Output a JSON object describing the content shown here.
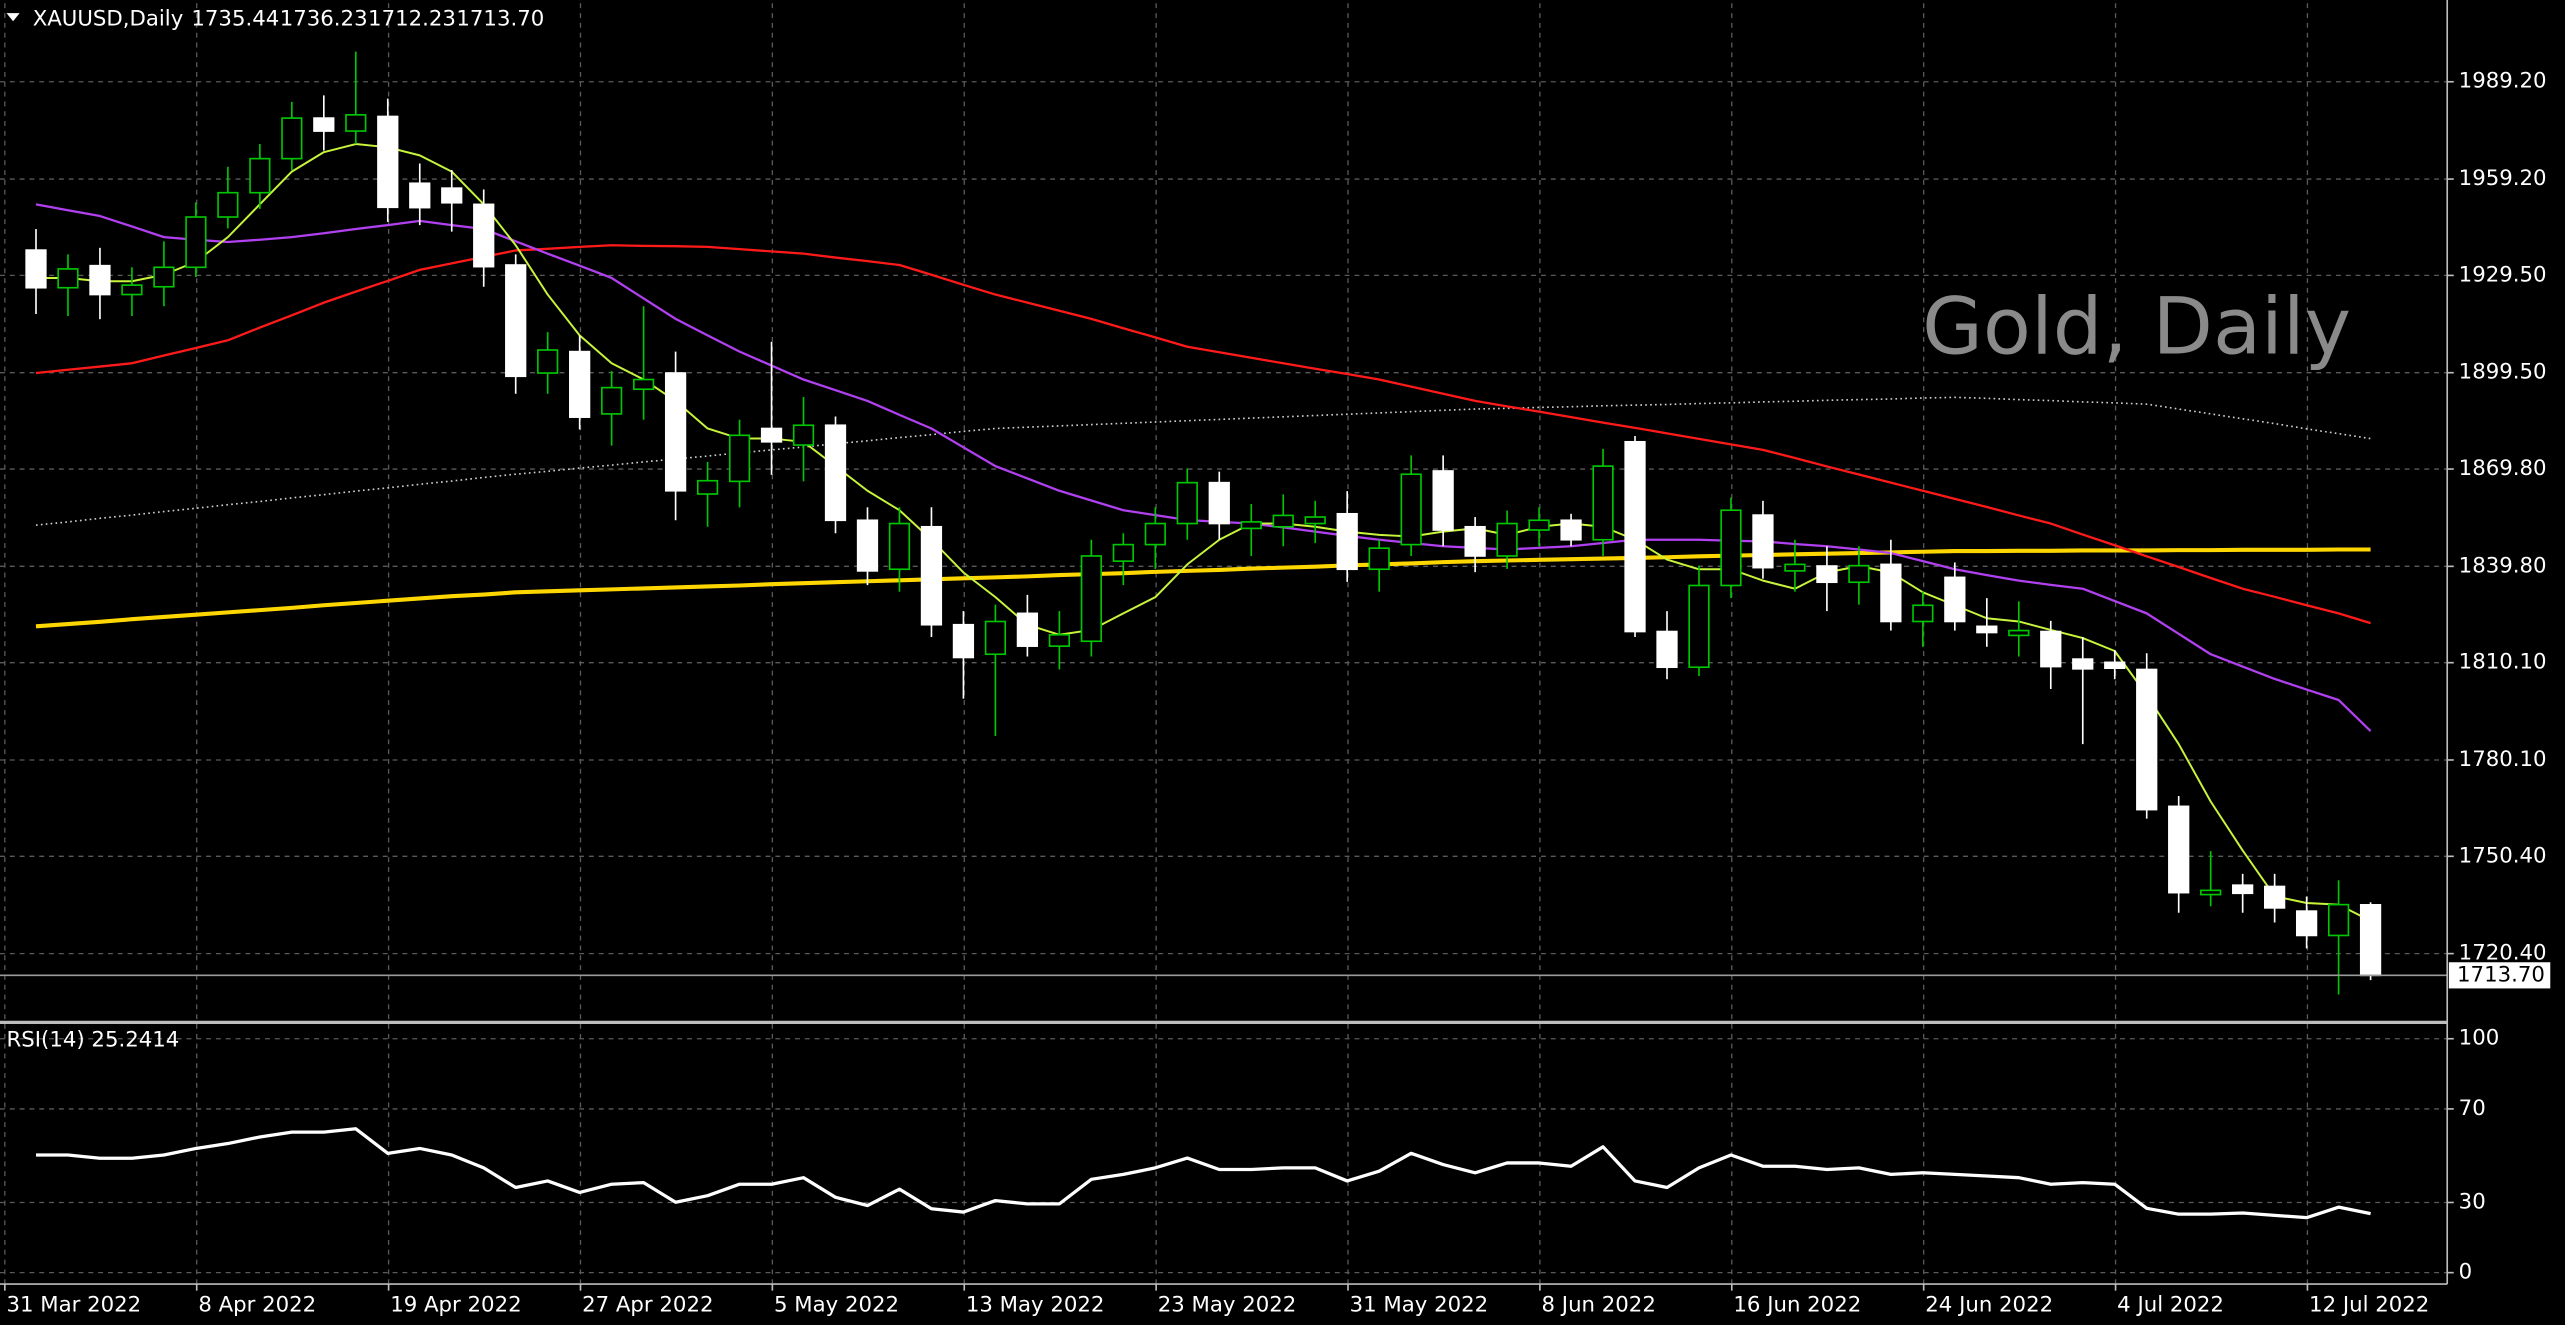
{
  "chart_data": {
    "type": "candlestick",
    "symbol": "XAUUSD,Daily",
    "ohlc_labels": [
      "1735.44",
      "1736.23",
      "1712.23",
      "1713.70"
    ],
    "watermark": "Gold, Daily",
    "categories": [
      "31 Mar 2022",
      null,
      null,
      null,
      null,
      null,
      "8 Apr 2022",
      null,
      null,
      null,
      null,
      null,
      "19 Apr 2022",
      null,
      null,
      null,
      null,
      null,
      "27 Apr 2022",
      null,
      null,
      null,
      null,
      null,
      "5 May 2022",
      null,
      null,
      null,
      null,
      null,
      "13 May 2022",
      null,
      null,
      null,
      null,
      null,
      "23 May 2022",
      null,
      null,
      null,
      null,
      null,
      "31 May 2022",
      null,
      null,
      null,
      null,
      null,
      "8 Jun 2022",
      null,
      null,
      null,
      null,
      null,
      "16 Jun 2022",
      null,
      null,
      null,
      null,
      null,
      "24 Jun 2022",
      null,
      null,
      null,
      null,
      null,
      "4 Jul 2022",
      null,
      null,
      null,
      null,
      null,
      "12 Jul 2022",
      null
    ],
    "open": [
      1937.3,
      1925.7,
      1932.5,
      1923.6,
      1926.0,
      1932.0,
      1947.5,
      1955.0,
      1965.5,
      1978.0,
      1974.0,
      1978.5,
      1957.9,
      1956.4,
      1951.4,
      1932.7,
      1899.4,
      1906.0,
      1886.8,
      1894.4,
      1899.4,
      1862.1,
      1866.0,
      1882.3,
      1877.2,
      1883.3,
      1854.0,
      1838.9,
      1852.0,
      1821.8,
      1812.7,
      1825.3,
      1815.2,
      1816.7,
      1841.4,
      1846.5,
      1853.0,
      1865.6,
      1851.5,
      1852.0,
      1853.0,
      1856.0,
      1838.9,
      1846.5,
      1869.2,
      1852.0,
      1843.0,
      1851.0,
      1854.0,
      1848.0,
      1878.2,
      1819.7,
      1808.7,
      1833.9,
      1855.6,
      1838.4,
      1839.9,
      1834.9,
      1840.4,
      1822.8,
      1836.4,
      1821.3,
      1818.5,
      1819.7,
      1811.2,
      1810.2,
      1808.0,
      1765.8,
      1738.6,
      1741.5,
      1741.1,
      1733.5,
      1726.0,
      1735.44
    ],
    "high": [
      1943.8,
      1936.0,
      1938.0,
      1932.0,
      1940.0,
      1952.0,
      1963.0,
      1970.0,
      1983.0,
      1985.0,
      1998.5,
      1984.0,
      1964.0,
      1962.0,
      1956.0,
      1936.0,
      1912.0,
      1911.0,
      1900.0,
      1920.0,
      1906.0,
      1872.0,
      1885.0,
      1909.0,
      1892.0,
      1886.0,
      1858.0,
      1858.0,
      1858.0,
      1826.0,
      1828.0,
      1831.0,
      1826.0,
      1848.0,
      1850.0,
      1858.0,
      1870.0,
      1869.0,
      1859.0,
      1862.0,
      1860.0,
      1863.0,
      1848.0,
      1874.0,
      1874.0,
      1855.0,
      1857.0,
      1858.0,
      1856.0,
      1876.0,
      1880.0,
      1826.0,
      1840.0,
      1861.0,
      1860.0,
      1848.0,
      1846.0,
      1846.0,
      1848.0,
      1832.0,
      1841.0,
      1830.0,
      1829.0,
      1823.0,
      1818.0,
      1814.0,
      1813.0,
      1769.0,
      1752.0,
      1745.0,
      1745.0,
      1738.0,
      1743.0,
      1736.23
    ],
    "low": [
      1917.6,
      1917.0,
      1916.0,
      1917.0,
      1920.0,
      1929.0,
      1944.0,
      1950.0,
      1962.0,
      1968.0,
      1970.0,
      1946.0,
      1945.0,
      1943.0,
      1926.0,
      1893.0,
      1893.0,
      1882.0,
      1877.0,
      1885.0,
      1854.0,
      1852.0,
      1858.0,
      1868.0,
      1866.0,
      1850.0,
      1834.0,
      1832.0,
      1818.0,
      1799.0,
      1787.5,
      1812.0,
      1808.0,
      1812.0,
      1834.0,
      1839.0,
      1848.0,
      1848.0,
      1843.0,
      1846.0,
      1847.0,
      1835.0,
      1832.0,
      1843.0,
      1846.0,
      1838.0,
      1839.0,
      1846.0,
      1846.0,
      1843.0,
      1818.0,
      1805.0,
      1806.0,
      1830.0,
      1836.0,
      1832.0,
      1826.0,
      1828.0,
      1820.0,
      1815.0,
      1820.0,
      1815.0,
      1812.0,
      1802.0,
      1785.0,
      1805.0,
      1762.0,
      1733.0,
      1735.0,
      1733.0,
      1730.0,
      1722.0,
      1707.8,
      1712.23
    ],
    "close": [
      1925.7,
      1931.5,
      1923.6,
      1926.5,
      1932.0,
      1947.5,
      1955.0,
      1965.5,
      1978.0,
      1974.0,
      1979.0,
      1950.5,
      1950.4,
      1951.9,
      1932.2,
      1898.4,
      1906.5,
      1885.8,
      1894.9,
      1897.4,
      1863.1,
      1866.2,
      1880.2,
      1878.2,
      1883.3,
      1854.0,
      1838.4,
      1853.0,
      1821.8,
      1811.7,
      1822.8,
      1815.2,
      1818.7,
      1843.0,
      1846.5,
      1853.0,
      1865.6,
      1853.0,
      1853.5,
      1855.5,
      1855.0,
      1838.9,
      1845.4,
      1868.2,
      1851.0,
      1843.0,
      1853.0,
      1854.0,
      1848.0,
      1870.7,
      1819.7,
      1808.7,
      1833.9,
      1857.1,
      1839.4,
      1840.4,
      1834.9,
      1840.0,
      1822.8,
      1827.8,
      1822.8,
      1819.4,
      1820.0,
      1808.9,
      1808.2,
      1808.4,
      1764.8,
      1739.2,
      1739.9,
      1739.0,
      1734.5,
      1726.0,
      1735.5,
      1713.7
    ],
    "bull_color": "#00c800",
    "bull_fill": "#000000",
    "bear_color": "#ffffff",
    "overlays": [
      {
        "color": "#ffd700",
        "width": 2.5,
        "style": "solid",
        "values": [
          1821.3,
          1822.0,
          1822.7,
          1823.5,
          1824.2,
          1824.9,
          1825.6,
          1826.3,
          1827.0,
          1827.8,
          1828.5,
          1829.2,
          1829.9,
          1830.6,
          1831.1,
          1831.8,
          1832.1,
          1832.4,
          1832.7,
          1833.0,
          1833.3,
          1833.6,
          1833.9,
          1834.3,
          1834.6,
          1834.9,
          1835.2,
          1835.5,
          1835.8,
          1836.1,
          1836.4,
          1836.7,
          1837.1,
          1837.4,
          1837.7,
          1838.1,
          1838.4,
          1838.7,
          1839.1,
          1839.4,
          1839.7,
          1840.1,
          1840.4,
          1840.7,
          1841.1,
          1841.4,
          1841.6,
          1841.8,
          1842.0,
          1842.2,
          1842.4,
          1842.6,
          1842.9,
          1843.1,
          1843.3,
          1843.5,
          1843.7,
          1843.9,
          1844.1,
          1844.3,
          1844.5,
          1844.5,
          1844.6,
          1844.6,
          1844.7,
          1844.7,
          1844.7,
          1844.8,
          1844.8,
          1844.9,
          1844.9,
          1844.9,
          1845.0,
          1845.0
        ]
      },
      {
        "color": "#d0d0d0",
        "width": 1,
        "style": "dotted",
        "values": [
          1852.5,
          1853.5,
          1854.6,
          1855.6,
          1856.7,
          1857.7,
          1858.8,
          1859.8,
          1860.9,
          1861.9,
          1863.0,
          1864.0,
          1865.1,
          1866.1,
          1867.2,
          1868.2,
          1869.1,
          1870.1,
          1871.0,
          1872.0,
          1872.9,
          1873.8,
          1874.8,
          1875.7,
          1876.6,
          1877.6,
          1878.5,
          1879.5,
          1880.4,
          1881.4,
          1882.3,
          1882.7,
          1883.1,
          1883.5,
          1883.9,
          1884.3,
          1884.7,
          1885.1,
          1885.5,
          1885.9,
          1886.3,
          1886.7,
          1887.1,
          1887.5,
          1887.9,
          1888.3,
          1888.5,
          1888.8,
          1889.0,
          1889.3,
          1889.5,
          1889.7,
          1890.0,
          1890.2,
          1890.5,
          1890.7,
          1891.0,
          1891.2,
          1891.4,
          1891.7,
          1891.9,
          1891.6,
          1891.2,
          1890.9,
          1890.5,
          1890.2,
          1889.8,
          1888.3,
          1886.8,
          1885.3,
          1883.8,
          1882.2,
          1880.7,
          1879.2
        ]
      },
      {
        "color": "#ff1a1a",
        "width": 1.4,
        "style": "solid",
        "values": [
          1899.4,
          1900.4,
          1901.4,
          1902.4,
          1904.8,
          1907.1,
          1909.5,
          1913.4,
          1917.2,
          1921.1,
          1924.5,
          1927.8,
          1931.2,
          1933.2,
          1935.2,
          1937.2,
          1937.7,
          1938.3,
          1938.8,
          1938.6,
          1938.5,
          1938.3,
          1937.6,
          1936.9,
          1936.2,
          1935.0,
          1933.9,
          1932.7,
          1929.7,
          1926.6,
          1923.6,
          1921.1,
          1918.6,
          1916.1,
          1913.2,
          1910.4,
          1907.5,
          1905.8,
          1904.1,
          1902.4,
          1900.7,
          1899.1,
          1897.4,
          1895.2,
          1893.0,
          1890.8,
          1889.1,
          1887.5,
          1885.8,
          1884.1,
          1882.5,
          1880.8,
          1879.1,
          1877.4,
          1875.7,
          1873.2,
          1870.6,
          1868.1,
          1865.6,
          1863.1,
          1860.6,
          1858.1,
          1855.5,
          1853.0,
          1849.6,
          1846.3,
          1842.9,
          1839.6,
          1836.2,
          1832.9,
          1830.4,
          1827.8,
          1825.3,
          1822.3
        ]
      },
      {
        "color": "#b040f0",
        "width": 1.4,
        "style": "solid",
        "values": [
          1951.4,
          1949.6,
          1947.8,
          1944.6,
          1941.3,
          1940.5,
          1939.8,
          1940.5,
          1941.3,
          1942.5,
          1943.8,
          1945.0,
          1946.3,
          1945.0,
          1943.8,
          1940.0,
          1936.2,
          1932.5,
          1928.7,
          1922.4,
          1916.1,
          1911.0,
          1906.0,
          1901.7,
          1897.4,
          1894.1,
          1890.8,
          1886.5,
          1882.3,
          1876.5,
          1870.7,
          1866.9,
          1863.1,
          1860.1,
          1857.1,
          1855.6,
          1854.1,
          1853.5,
          1853.0,
          1851.8,
          1850.5,
          1849.2,
          1848.0,
          1847.0,
          1846.0,
          1845.5,
          1845.0,
          1845.5,
          1846.0,
          1847.0,
          1848.0,
          1848.0,
          1848.0,
          1847.7,
          1847.5,
          1846.7,
          1846.0,
          1845.0,
          1843.9,
          1841.4,
          1838.9,
          1837.1,
          1835.4,
          1834.1,
          1832.9,
          1829.1,
          1825.3,
          1819.0,
          1812.7,
          1808.9,
          1805.1,
          1801.8,
          1798.6,
          1789.0
        ]
      },
      {
        "color": "#c8f53c",
        "width": 1.2,
        "style": "solid",
        "values": [
          1928.7,
          1928.7,
          1927.7,
          1927.7,
          1929.7,
          1933.7,
          1941.3,
          1951.4,
          1961.5,
          1967.5,
          1970.0,
          1969.0,
          1966.5,
          1961.5,
          1951.4,
          1938.8,
          1923.6,
          1911.0,
          1902.4,
          1897.4,
          1890.8,
          1882.3,
          1879.2,
          1879.2,
          1878.2,
          1870.7,
          1863.1,
          1857.1,
          1848.0,
          1837.9,
          1830.3,
          1821.8,
          1818.7,
          1820.2,
          1825.3,
          1830.3,
          1840.4,
          1848.0,
          1853.0,
          1853.0,
          1852.0,
          1850.5,
          1849.5,
          1849.0,
          1850.5,
          1851.5,
          1849.5,
          1852.0,
          1853.0,
          1852.0,
          1848.0,
          1841.9,
          1838.9,
          1838.9,
          1835.4,
          1832.9,
          1837.9,
          1839.9,
          1837.9,
          1831.8,
          1827.8,
          1823.8,
          1822.8,
          1820.2,
          1817.7,
          1813.7,
          1800.1,
          1785.0,
          1767.3,
          1752.2,
          1738.1,
          1736.0,
          1735.5,
          1730.5
        ]
      }
    ],
    "ylim": [
      1699.2,
      2013.4
    ],
    "yticks": [
      {
        "value": 1989.2,
        "label": "1989.20"
      },
      {
        "value": 1959.2,
        "label": "1959.20"
      },
      {
        "value": 1929.5,
        "label": "1929.50"
      },
      {
        "value": 1899.5,
        "label": "1899.50"
      },
      {
        "value": 1869.8,
        "label": "1869.80"
      },
      {
        "value": 1839.8,
        "label": "1839.80"
      },
      {
        "value": 1810.1,
        "label": "1810.10"
      },
      {
        "value": 1780.1,
        "label": "1780.10"
      },
      {
        "value": 1750.4,
        "label": "1750.40"
      },
      {
        "value": 1720.4,
        "label": "1720.40"
      }
    ],
    "last_price": {
      "value": 1713.7,
      "label": "1713.70"
    },
    "grid": true,
    "rsi": {
      "type": "line",
      "title": "RSI(14) 25.2414",
      "color": "#ffffff",
      "values": [
        50.3,
        50.3,
        48.9,
        48.9,
        50.3,
        53.1,
        55.2,
        58.0,
        60.1,
        60.1,
        61.5,
        51.0,
        53.1,
        50.3,
        44.8,
        36.4,
        39.2,
        34.3,
        37.8,
        38.5,
        30.1,
        32.9,
        37.8,
        37.8,
        40.6,
        32.2,
        28.7,
        35.7,
        27.3,
        25.9,
        30.8,
        29.4,
        29.4,
        39.9,
        42.0,
        44.8,
        49.0,
        44.1,
        44.1,
        44.8,
        44.8,
        39.2,
        43.4,
        51.0,
        46.2,
        42.7,
        46.9,
        46.9,
        45.5,
        53.8,
        39.2,
        36.4,
        44.8,
        50.3,
        45.5,
        45.5,
        44.1,
        44.8,
        42.0,
        42.7,
        42.0,
        41.3,
        40.6,
        37.8,
        38.5,
        37.8,
        27.5,
        25.0,
        25.0,
        25.5,
        24.5,
        23.5,
        28.0,
        25.2414
      ],
      "ylim": [
        -4.9,
        105.6
      ],
      "yticks": [
        100,
        70,
        30,
        0
      ]
    }
  }
}
